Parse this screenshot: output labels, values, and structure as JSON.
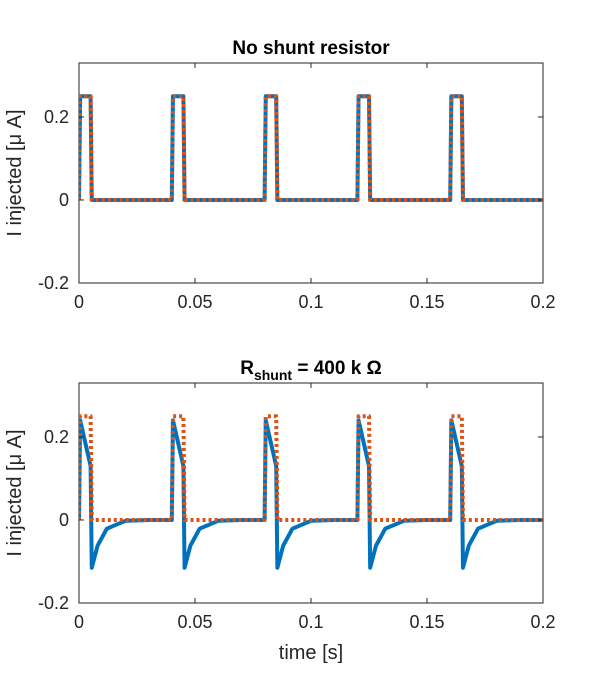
{
  "colors": {
    "model": "#0072BD",
    "command": "#D95319",
    "axis": "#262626",
    "background": "#ffffff"
  },
  "chart_data": [
    {
      "type": "line",
      "title": "No shunt resistor",
      "title_shunt": null,
      "xlabel": "",
      "ylabel": "I injected [μ A]",
      "xlim": [
        0,
        0.2
      ],
      "ylim": [
        -0.2,
        0.33
      ],
      "xticks": [
        "0",
        "0.05",
        "0.1",
        "0.15",
        "0.2"
      ],
      "yticks": [
        "-0.2",
        "0",
        "0.2"
      ],
      "grid": false,
      "legend": "none",
      "pulses": {
        "period": 0.04,
        "width": 0.005,
        "amplitude": 0.25,
        "count": 5
      },
      "series": [
        {
          "style": "solid",
          "color": "#0072BD",
          "x": [
            0,
            0.0005,
            0.005,
            0.0055,
            0.04,
            0.0405,
            0.045,
            0.0455,
            0.08,
            0.0805,
            0.085,
            0.0855,
            0.12,
            0.1205,
            0.125,
            0.1255,
            0.16,
            0.1605,
            0.165,
            0.1655,
            0.2
          ],
          "y": [
            0,
            0.25,
            0.25,
            0,
            0,
            0.25,
            0.25,
            0,
            0,
            0.25,
            0.25,
            0,
            0,
            0.25,
            0.25,
            0,
            0,
            0.25,
            0.25,
            0,
            0
          ]
        },
        {
          "style": "dotted",
          "color": "#D95319",
          "x": [
            0,
            0.0005,
            0.005,
            0.0055,
            0.04,
            0.0405,
            0.045,
            0.0455,
            0.08,
            0.0805,
            0.085,
            0.0855,
            0.12,
            0.1205,
            0.125,
            0.1255,
            0.16,
            0.1605,
            0.165,
            0.1655,
            0.2
          ],
          "y": [
            0,
            0.25,
            0.25,
            0,
            0,
            0.25,
            0.25,
            0,
            0,
            0.25,
            0.25,
            0,
            0,
            0.25,
            0.25,
            0,
            0,
            0.25,
            0.25,
            0,
            0
          ]
        }
      ]
    },
    {
      "type": "line",
      "title": "",
      "title_shunt": {
        "main": "R",
        "sub": "shunt",
        "rest": " = 400 k Ω"
      },
      "xlabel": "time [s]",
      "ylabel": "I injected [μ A]",
      "xlim": [
        0,
        0.2
      ],
      "ylim": [
        -0.2,
        0.33
      ],
      "xticks": [
        "0",
        "0.05",
        "0.1",
        "0.15",
        "0.2"
      ],
      "yticks": [
        "-0.2",
        "0",
        "0.2"
      ],
      "grid": false,
      "legend": "none",
      "pulses": {
        "period": 0.04,
        "width": 0.005,
        "amplitude": 0.25,
        "count": 5
      },
      "response": {
        "peak": 0.24,
        "pulse_end": 0.13,
        "undershoot": -0.115,
        "tau": 0.004
      },
      "series": [
        {
          "style": "solid",
          "color": "#0072BD",
          "x": [
            0,
            0.0005,
            0.005,
            0.0055,
            0.008,
            0.012,
            0.02,
            0.03,
            0.04,
            0.0405,
            0.045,
            0.0455,
            0.048,
            0.052,
            0.06,
            0.07,
            0.08,
            0.0805,
            0.085,
            0.0855,
            0.088,
            0.092,
            0.1,
            0.11,
            0.12,
            0.1205,
            0.125,
            0.1255,
            0.128,
            0.132,
            0.14,
            0.15,
            0.16,
            0.1605,
            0.165,
            0.1655,
            0.168,
            0.172,
            0.18,
            0.19,
            0.2
          ],
          "y": [
            0,
            0.24,
            0.13,
            -0.115,
            -0.062,
            -0.021,
            -0.002,
            0,
            0,
            0.24,
            0.13,
            -0.115,
            -0.062,
            -0.021,
            -0.002,
            0,
            0,
            0.24,
            0.13,
            -0.115,
            -0.062,
            -0.021,
            -0.002,
            0,
            0,
            0.24,
            0.13,
            -0.115,
            -0.062,
            -0.021,
            -0.002,
            0,
            0,
            0.24,
            0.13,
            -0.115,
            -0.062,
            -0.021,
            -0.002,
            0,
            0
          ]
        },
        {
          "style": "dotted",
          "color": "#D95319",
          "x": [
            0,
            0.0005,
            0.005,
            0.0055,
            0.04,
            0.0405,
            0.045,
            0.0455,
            0.08,
            0.0805,
            0.085,
            0.0855,
            0.12,
            0.1205,
            0.125,
            0.1255,
            0.16,
            0.1605,
            0.165,
            0.1655,
            0.2
          ],
          "y": [
            0,
            0.25,
            0.25,
            0,
            0,
            0.25,
            0.25,
            0,
            0,
            0.25,
            0.25,
            0,
            0,
            0.25,
            0.25,
            0,
            0,
            0.25,
            0.25,
            0,
            0
          ]
        }
      ]
    }
  ]
}
